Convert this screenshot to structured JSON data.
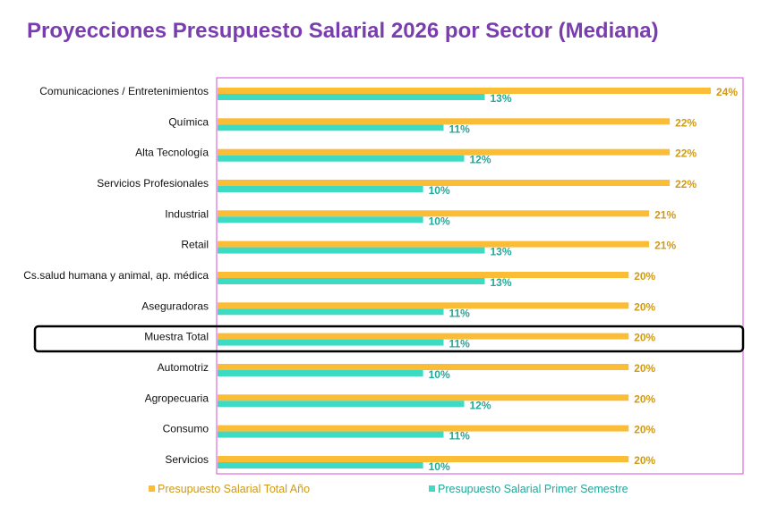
{
  "colors": {
    "title": "#7a3db0",
    "series_total": "#fbbc36",
    "series_first": "#3ddbc4",
    "label_total": "#d09a15",
    "label_first": "#22a99a",
    "plot_border": "#d44fd8",
    "highlight_border": "#000000"
  },
  "chart_data": {
    "type": "bar",
    "orientation": "horizontal",
    "title": "Proyecciones Presupuesto Salarial 2026 por Sector (Mediana)",
    "categories": [
      "Comunicaciones / Entretenimientos",
      "Química",
      "Alta Tecnología",
      "Servicios Profesionales",
      "Industrial",
      "Retail",
      "Cs.salud humana y animal, ap. médica",
      "Aseguradoras",
      "Muestra Total",
      "Automotriz",
      "Agropecuaria",
      "Consumo",
      "Servicios"
    ],
    "series": [
      {
        "name": "Presupuesto Salarial Total Año",
        "values": [
          24,
          22,
          22,
          22,
          21,
          21,
          20,
          20,
          20,
          20,
          20,
          20,
          20
        ],
        "labels": [
          "24%",
          "22%",
          "22%",
          "22%",
          "21%",
          "21%",
          "20%",
          "20%",
          "20%",
          "20%",
          "20%",
          "20%",
          "20%"
        ]
      },
      {
        "name": "Presupuesto Salarial Primer Semestre",
        "values": [
          13,
          11,
          12,
          10,
          10,
          13,
          13,
          11,
          11,
          10,
          12,
          11,
          10
        ],
        "labels": [
          "13%",
          "11%",
          "12%",
          "10%",
          "10%",
          "13%",
          "13%",
          "11%",
          "11%",
          "10%",
          "12%",
          "11%",
          "10%"
        ]
      }
    ],
    "xlim": [
      0,
      25
    ],
    "grid": false,
    "legend_position": "bottom",
    "legend": [
      "Presupuesto Salarial Total Año",
      "Presupuesto Salarial Primer Semestre"
    ],
    "highlighted_category": "Muestra Total"
  }
}
